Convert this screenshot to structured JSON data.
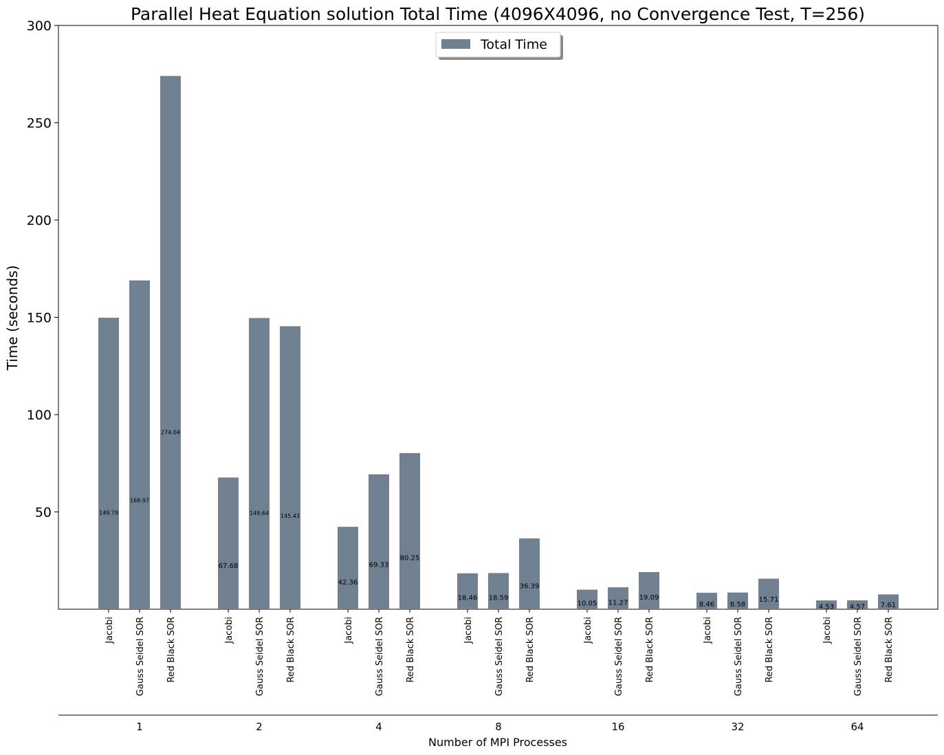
{
  "chart_data": {
    "type": "bar",
    "title": "Parallel Heat Equation solution Total Time (4096X4096, no Convergence Test, T=256)",
    "xlabel": "Number of MPI Processes",
    "ylabel": "Time (seconds)",
    "ylim": [
      0,
      300
    ],
    "yticks": [
      50,
      100,
      150,
      200,
      250,
      300
    ],
    "grid": false,
    "legend_position": "top-center",
    "bar_color": "#708090",
    "series": [
      {
        "name": "Total Time",
        "groups": [
          {
            "label": "1",
            "bars": [
              {
                "method": "Jacobi",
                "value": 149.79,
                "label": "149.79"
              },
              {
                "method": "Gauss Seidel SOR",
                "value": 168.97,
                "label": "168.97"
              },
              {
                "method": "Red Black SOR",
                "value": 274.04,
                "label": "274.04"
              }
            ]
          },
          {
            "label": "2",
            "bars": [
              {
                "method": "Jacobi",
                "value": 67.68,
                "label": "67.68"
              },
              {
                "method": "Gauss Seidel SOR",
                "value": 149.64,
                "label": "149.64"
              },
              {
                "method": "Red Black SOR",
                "value": 145.43,
                "label": "145.43"
              }
            ]
          },
          {
            "label": "4",
            "bars": [
              {
                "method": "Jacobi",
                "value": 42.36,
                "label": "42.36"
              },
              {
                "method": "Gauss Seidel SOR",
                "value": 69.33,
                "label": "69.33"
              },
              {
                "method": "Red Black SOR",
                "value": 80.25,
                "label": "80.25"
              }
            ]
          },
          {
            "label": "8",
            "bars": [
              {
                "method": "Jacobi",
                "value": 18.46,
                "label": "18.46"
              },
              {
                "method": "Gauss Seidel SOR",
                "value": 18.59,
                "label": "18.59"
              },
              {
                "method": "Red Black SOR",
                "value": 36.39,
                "label": "36.39"
              }
            ]
          },
          {
            "label": "16",
            "bars": [
              {
                "method": "Jacobi",
                "value": 10.05,
                "label": "10.05"
              },
              {
                "method": "Gauss Seidel SOR",
                "value": 11.27,
                "label": "11.27"
              },
              {
                "method": "Red Black SOR",
                "value": 19.09,
                "label": "19.09"
              }
            ]
          },
          {
            "label": "32",
            "bars": [
              {
                "method": "Jacobi",
                "value": 8.46,
                "label": "8.46"
              },
              {
                "method": "Gauss Seidel SOR",
                "value": 8.58,
                "label": "8.58"
              },
              {
                "method": "Red Black SOR",
                "value": 15.71,
                "label": "15.71"
              }
            ]
          },
          {
            "label": "64",
            "bars": [
              {
                "method": "Jacobi",
                "value": 4.53,
                "label": "4.53"
              },
              {
                "method": "Gauss Seidel SOR",
                "value": 4.57,
                "label": "4.57"
              },
              {
                "method": "Red Black SOR",
                "value": 7.61,
                "label": "7.61"
              }
            ]
          }
        ]
      }
    ]
  }
}
